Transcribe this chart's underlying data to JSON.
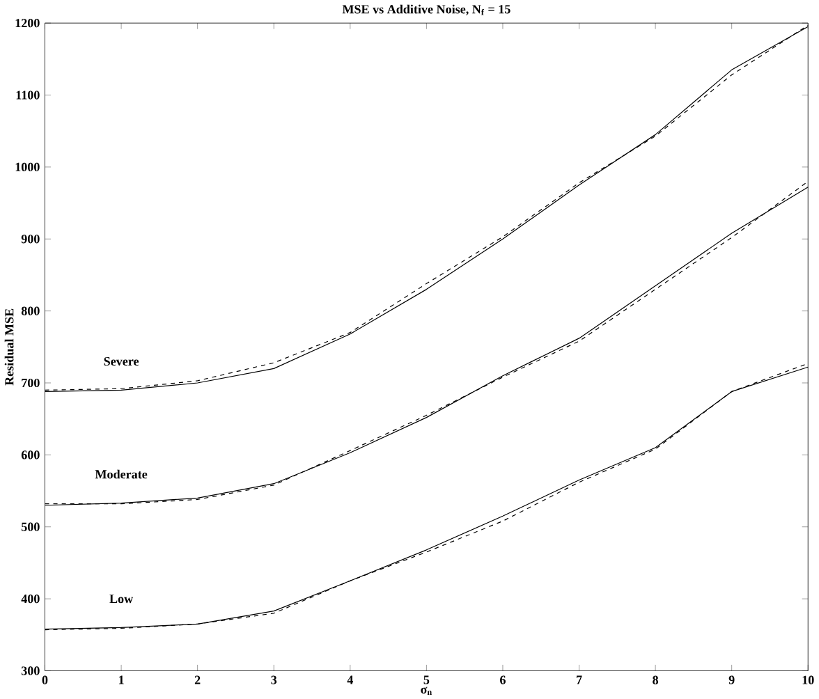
{
  "chart_data": {
    "type": "line",
    "title": "MSE vs Additive Noise, N$_{f}$ = 15",
    "xlabel": "σ$_{n}$",
    "ylabel": "Residual MSE",
    "x": [
      0,
      1,
      2,
      3,
      4,
      5,
      6,
      7,
      8,
      9,
      10
    ],
    "series": [
      {
        "name": "Severe",
        "color": "#000000",
        "line_style": "solid",
        "values": [
          688,
          690,
          700,
          720,
          768,
          830,
          900,
          975,
          1045,
          1135,
          1195
        ]
      },
      {
        "color": "#000000",
        "line_style": "dashed",
        "values": [
          690,
          692,
          703,
          728,
          770,
          838,
          903,
          978,
          1043,
          1128,
          1197
        ]
      },
      {
        "name": "Moderate",
        "color": "#000000",
        "line_style": "solid",
        "values": [
          530,
          533,
          540,
          560,
          603,
          652,
          710,
          762,
          835,
          908,
          972
        ]
      },
      {
        "color": "#000000",
        "line_style": "dashed",
        "values": [
          532,
          532,
          538,
          558,
          606,
          655,
          708,
          758,
          830,
          902,
          980
        ]
      },
      {
        "name": "Low",
        "color": "#000000",
        "line_style": "solid",
        "values": [
          358,
          360,
          365,
          383,
          425,
          468,
          515,
          565,
          610,
          688,
          722
        ]
      },
      {
        "color": "#000000",
        "line_style": "dashed",
        "values": [
          357,
          359,
          365,
          380,
          425,
          465,
          508,
          562,
          608,
          688,
          727
        ]
      }
    ],
    "xlim": [
      0,
      10
    ],
    "ylim": [
      300,
      1200
    ],
    "xticks": [
      0,
      1,
      2,
      3,
      4,
      5,
      6,
      7,
      8,
      9,
      10
    ],
    "yticks": [
      300,
      400,
      500,
      600,
      700,
      800,
      900,
      1000,
      1100,
      1200
    ],
    "grid": false,
    "marker": "none"
  }
}
